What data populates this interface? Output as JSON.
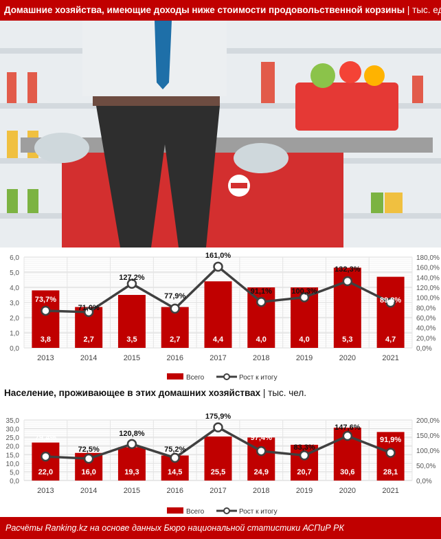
{
  "title": {
    "main": "Домашние хозяйства, имеющие доходы ниже стоимости продовольственной корзины",
    "unit": "| тыс. ед."
  },
  "subtitle": {
    "main": "Население, проживающее в этих домашних хозяйствах",
    "unit": "| тыс. чел."
  },
  "footer": "Расчёты Ranking.kz на основе данных Бюро национальной статистики АСПиР РК",
  "colors": {
    "brand": "#c00000",
    "bar": "#c00000",
    "line": "#404040",
    "grid": "#d9d9d9"
  },
  "chart_data": [
    {
      "type": "bar",
      "title": "Домашние хозяйства, имеющие доходы ниже стоимости продовольственной корзины",
      "categories": [
        "2013",
        "2014",
        "2015",
        "2016",
        "2017",
        "2018",
        "2019",
        "2020",
        "2021"
      ],
      "series": [
        {
          "name": "Всего",
          "type": "bar",
          "axis": "left",
          "values": [
            3.8,
            2.7,
            3.5,
            2.7,
            4.4,
            4.0,
            4.0,
            5.3,
            4.7
          ],
          "labels": [
            "3,8",
            "2,7",
            "3,5",
            "2,7",
            "4,4",
            "4,0",
            "4,0",
            "5,3",
            "4,7"
          ]
        },
        {
          "name": "Рост к итогу",
          "type": "line",
          "axis": "right",
          "values": [
            73.7,
            71.0,
            127.2,
            77.9,
            161.0,
            91.1,
            100.3,
            132.3,
            89.8
          ],
          "labels": [
            "73,7%",
            "71,0%",
            "127,2%",
            "77,9%",
            "161,0%",
            "91,1%",
            "100,3%",
            "132,3%",
            "89,8%"
          ]
        }
      ],
      "ylim": [
        0,
        6
      ],
      "y2lim": [
        0,
        180
      ],
      "yticks": [
        "0,0",
        "1,0",
        "2,0",
        "3,0",
        "4,0",
        "5,0",
        "6,0"
      ],
      "y2ticks": [
        "0,0%",
        "20,0%",
        "40,0%",
        "60,0%",
        "80,0%",
        "100,0%",
        "120,0%",
        "140,0%",
        "160,0%",
        "180,0%"
      ],
      "legend": "bottom",
      "grid": true
    },
    {
      "type": "bar",
      "title": "Население, проживающее в этих домашних хозяйствах",
      "categories": [
        "2013",
        "2014",
        "2015",
        "2016",
        "2017",
        "2018",
        "2019",
        "2020",
        "2021"
      ],
      "series": [
        {
          "name": "Всего",
          "type": "bar",
          "axis": "left",
          "values": [
            22.0,
            16.0,
            19.3,
            14.5,
            25.5,
            24.9,
            20.7,
            30.6,
            28.1
          ],
          "labels": [
            "22,0",
            "16,0",
            "19,3",
            "14,5",
            "25,5",
            "24,9",
            "20,7",
            "30,6",
            "28,1"
          ]
        },
        {
          "name": "Рост к итогу",
          "type": "line",
          "axis": "right",
          "values": [
            79.4,
            72.5,
            120.8,
            75.2,
            175.9,
            97.4,
            83.3,
            147.6,
            91.9
          ],
          "labels": [
            "79,4%",
            "72,5%",
            "120,8%",
            "75,2%",
            "175,9%",
            "97,4%",
            "83,3%",
            "147,6%",
            "91,9%"
          ]
        }
      ],
      "ylim": [
        0,
        35
      ],
      "y2lim": [
        0,
        200
      ],
      "yticks": [
        "0,0",
        "5,0",
        "10,0",
        "15,0",
        "20,0",
        "25,0",
        "30,0",
        "35,0"
      ],
      "y2ticks": [
        "0,0%",
        "50,0%",
        "100,0%",
        "150,0%",
        "200,0%"
      ],
      "legend": "bottom",
      "grid": true
    }
  ]
}
